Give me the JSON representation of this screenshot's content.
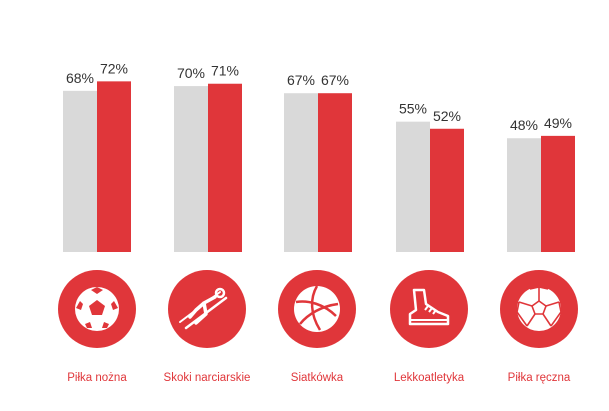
{
  "chart_data": {
    "type": "bar",
    "categories": [
      "Piłka nożna",
      "Skoki narciarskie",
      "Siatkówka",
      "Lekkoatletyka",
      "Piłka ręczna"
    ],
    "series": [
      {
        "values": [
          68,
          70,
          67,
          55,
          48
        ],
        "color": "#d9d9d9"
      },
      {
        "values": [
          72,
          71,
          67,
          52,
          49
        ],
        "color": "#e0363a"
      }
    ],
    "data_labels": [
      [
        "68%",
        "70%",
        "67%",
        "55%",
        "48%"
      ],
      [
        "72%",
        "71%",
        "67%",
        "52%",
        "49%"
      ]
    ],
    "ylim": [
      0,
      100
    ],
    "grid": false,
    "title": "",
    "xlabel": "",
    "ylabel": ""
  },
  "icons": [
    "soccer-ball-icon",
    "ski-jumper-icon",
    "volleyball-icon",
    "running-shoe-icon",
    "handball-icon"
  ],
  "colors": {
    "accent": "#e0363a",
    "gray_bar": "#d9d9d9",
    "label_text": "#e0363a",
    "value_text": "#333333"
  }
}
